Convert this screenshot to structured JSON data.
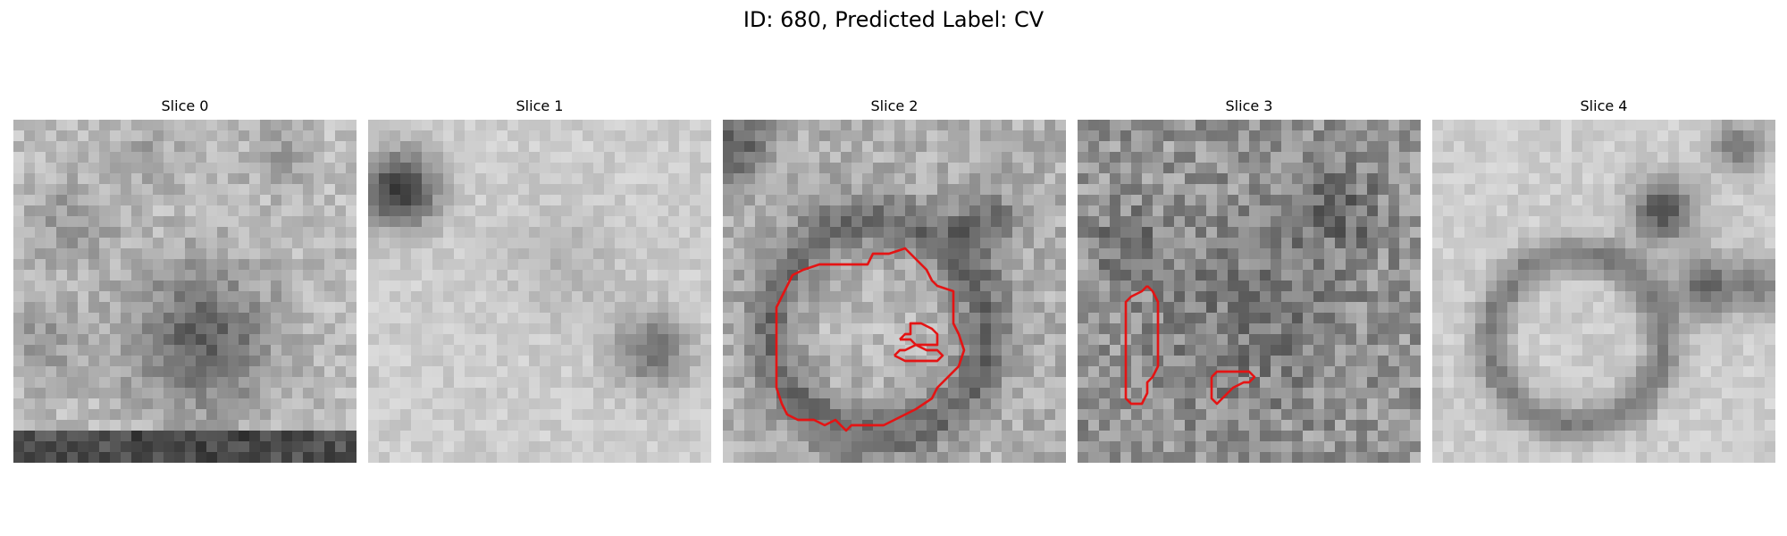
{
  "figure": {
    "title": "ID: 680, Predicted Label: CV"
  },
  "colors": {
    "contour": "#e41414",
    "background": "#ffffff"
  },
  "slices": [
    {
      "title": "Slice 0",
      "contours": []
    },
    {
      "title": "Slice 1",
      "contours": []
    },
    {
      "title": "Slice 2",
      "contours": [
        [
          [
            12.5,
            13.5
          ],
          [
            13.5,
            13.5
          ],
          [
            14.0,
            12.5
          ],
          [
            15.5,
            12.5
          ],
          [
            17.0,
            12.0
          ],
          [
            18.0,
            13.0
          ],
          [
            19.0,
            14.0
          ],
          [
            19.5,
            15.0
          ],
          [
            20.0,
            15.5
          ],
          [
            21.5,
            16.0
          ],
          [
            21.5,
            17.5
          ],
          [
            21.5,
            19.0
          ],
          [
            22.0,
            20.0
          ],
          [
            22.5,
            21.5
          ],
          [
            22.0,
            23.0
          ],
          [
            21.0,
            24.0
          ],
          [
            20.0,
            25.0
          ],
          [
            19.5,
            26.0
          ],
          [
            18.0,
            27.0
          ],
          [
            17.0,
            27.5
          ],
          [
            15.0,
            28.5
          ],
          [
            14.0,
            28.5
          ],
          [
            12.0,
            28.5
          ],
          [
            11.5,
            29.0
          ],
          [
            10.5,
            28.0
          ],
          [
            9.5,
            28.5
          ],
          [
            8.5,
            28.0
          ],
          [
            7.0,
            28.0
          ],
          [
            6.0,
            27.5
          ],
          [
            5.5,
            26.5
          ],
          [
            5.0,
            25.0
          ],
          [
            5.0,
            23.5
          ],
          [
            5.0,
            21.0
          ],
          [
            5.0,
            19.0
          ],
          [
            5.0,
            17.5
          ],
          [
            5.5,
            16.5
          ],
          [
            6.0,
            15.5
          ],
          [
            6.5,
            14.5
          ],
          [
            7.5,
            14.0
          ],
          [
            9.0,
            13.5
          ],
          [
            10.5,
            13.5
          ],
          [
            12.5,
            13.5
          ]
        ],
        [
          [
            16.5,
            20.5
          ],
          [
            17.0,
            20.0
          ],
          [
            17.5,
            20.0
          ],
          [
            17.5,
            19.5
          ],
          [
            17.5,
            19.0
          ],
          [
            18.5,
            19.0
          ],
          [
            19.5,
            19.5
          ],
          [
            20.0,
            20.0
          ],
          [
            20.0,
            21.0
          ],
          [
            19.0,
            21.0
          ],
          [
            18.0,
            21.0
          ],
          [
            17.5,
            20.5
          ],
          [
            16.5,
            20.5
          ]
        ],
        [
          [
            16.0,
            22.0
          ],
          [
            16.5,
            21.5
          ],
          [
            17.0,
            21.5
          ],
          [
            18.0,
            21.0
          ],
          [
            19.0,
            21.5
          ],
          [
            20.0,
            21.5
          ],
          [
            20.5,
            22.0
          ],
          [
            20.0,
            22.5
          ],
          [
            18.0,
            22.5
          ],
          [
            17.0,
            22.5
          ],
          [
            16.0,
            22.0
          ]
        ]
      ]
    },
    {
      "title": "Slice 3",
      "contours": [
        [
          [
            6.5,
            15.5
          ],
          [
            7.0,
            16.0
          ],
          [
            7.5,
            17.0
          ],
          [
            7.5,
            18.5
          ],
          [
            7.5,
            20.0
          ],
          [
            7.5,
            21.5
          ],
          [
            7.5,
            23.0
          ],
          [
            7.0,
            24.0
          ],
          [
            6.5,
            24.5
          ],
          [
            6.5,
            25.5
          ],
          [
            6.0,
            26.5
          ],
          [
            5.0,
            26.5
          ],
          [
            4.5,
            26.0
          ],
          [
            4.5,
            24.5
          ],
          [
            4.5,
            22.5
          ],
          [
            4.5,
            20.5
          ],
          [
            4.5,
            18.5
          ],
          [
            4.5,
            17.0
          ],
          [
            5.0,
            16.5
          ],
          [
            6.0,
            16.0
          ],
          [
            6.5,
            15.5
          ]
        ],
        [
          [
            12.5,
            24.0
          ],
          [
            13.0,
            23.5
          ],
          [
            14.0,
            23.5
          ],
          [
            15.0,
            23.5
          ],
          [
            16.0,
            23.5
          ],
          [
            16.5,
            24.0
          ],
          [
            16.0,
            24.5
          ],
          [
            15.5,
            24.5
          ],
          [
            14.5,
            25.0
          ],
          [
            14.0,
            25.5
          ],
          [
            13.5,
            26.0
          ],
          [
            13.0,
            26.5
          ],
          [
            12.5,
            26.0
          ],
          [
            12.5,
            25.0
          ],
          [
            12.5,
            24.0
          ]
        ]
      ]
    },
    {
      "title": "Slice 4",
      "contours": []
    }
  ]
}
